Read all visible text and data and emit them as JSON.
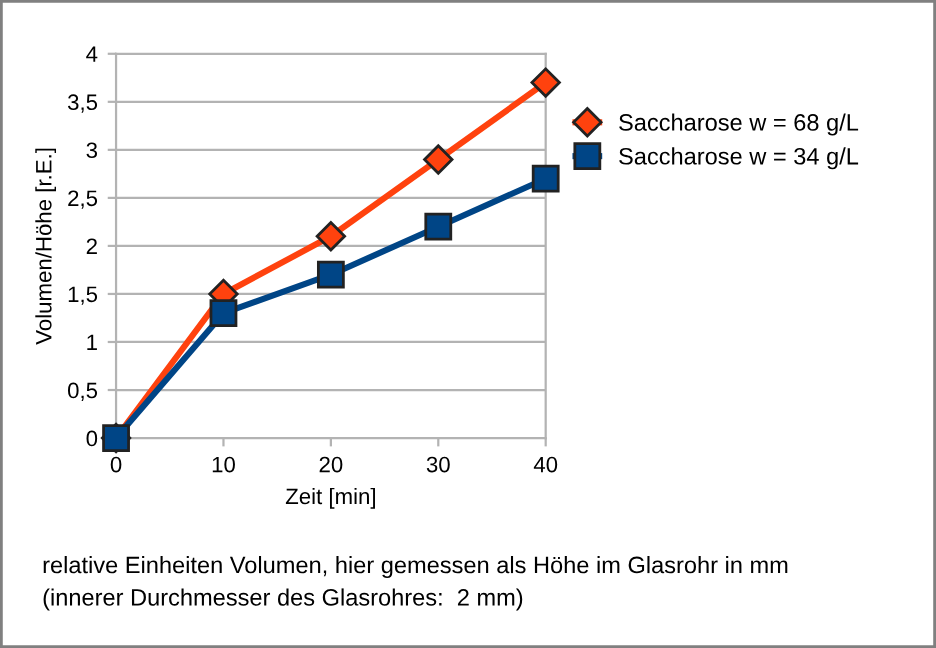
{
  "chart_data": {
    "type": "line",
    "xlabel": "Zeit [min]",
    "ylabel": "Volumen/Höhe [r.E.]",
    "x": [
      0,
      10,
      20,
      30,
      40
    ],
    "series": [
      {
        "name": "Saccharose w = 68 g/L",
        "color": "#ff420e",
        "marker": "diamond",
        "values": [
          0,
          1.5,
          2.1,
          2.9,
          3.7
        ]
      },
      {
        "name": "Saccharose w = 34 g/L",
        "color": "#004586",
        "marker": "square",
        "values": [
          0,
          1.3,
          1.7,
          2.2,
          2.7
        ]
      }
    ],
    "xlim": [
      0,
      40
    ],
    "xticks": [
      0,
      10,
      20,
      30,
      40
    ],
    "ylim": [
      0,
      4
    ],
    "yticks": [
      0,
      {
        "value": 0.5,
        "label": "0,5"
      },
      1,
      {
        "value": 1.5,
        "label": "1,5"
      },
      2,
      {
        "value": 2.5,
        "label": "2,5"
      },
      3,
      {
        "value": 3.5,
        "label": "3,5"
      },
      4
    ],
    "grid": "y",
    "legend": "right",
    "line_style": "solid",
    "annotations": [
      "relative Einheiten Volumen, hier gemessen als Höhe im Glasrohr in mm",
      "(innerer Durchmesser des Glasrohres:  2 mm)"
    ]
  }
}
